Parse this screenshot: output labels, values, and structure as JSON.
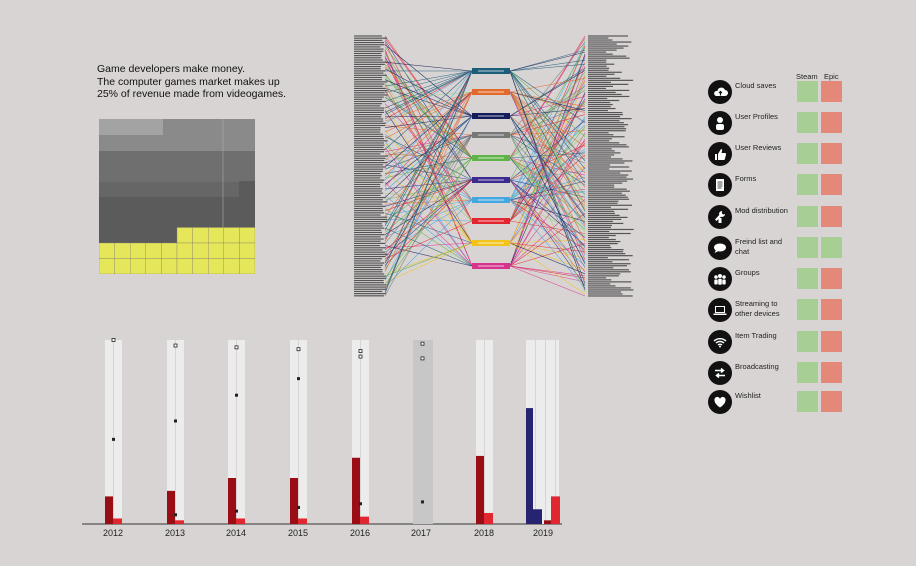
{
  "intro": {
    "line1": "Game developers make money.",
    "line2": "The computer games market makes up",
    "line3": "25% of revenue made from videogames."
  },
  "colors": {
    "background": "#d9d4d4",
    "steam_green": "#a7cf93",
    "epic_red": "#e4897a",
    "bar_dark_red": "#9b0d15",
    "bar_red": "#e0262e",
    "bar_navy": "#262471",
    "bar_track": "#ececec",
    "yellow": "#e6e65a"
  },
  "features": {
    "steam_label": "Steam",
    "epic_label": "Epic",
    "rows": [
      {
        "label": "Cloud saves",
        "icon": "cloud-upload-icon",
        "steam": "green",
        "epic": "red"
      },
      {
        "label": "User Profiles",
        "icon": "user-icon",
        "steam": "green",
        "epic": "red"
      },
      {
        "label": "User Reviews",
        "icon": "thumbs-up-icon",
        "steam": "green",
        "epic": "red"
      },
      {
        "label": "Forms",
        "icon": "document-icon",
        "steam": "green",
        "epic": "red"
      },
      {
        "label": "Mod distribution",
        "icon": "wrench-icon",
        "steam": "green",
        "epic": "red"
      },
      {
        "label": "Freind list and chat",
        "icon": "chat-bubble-icon",
        "steam": "green",
        "epic": "green"
      },
      {
        "label": "Groups",
        "icon": "group-icon",
        "steam": "green",
        "epic": "red"
      },
      {
        "label": "Streaming to other devices",
        "icon": "laptop-icon",
        "steam": "green",
        "epic": "red"
      },
      {
        "label": "Item Trading",
        "icon": "wifi-icon",
        "steam": "green",
        "epic": "red"
      },
      {
        "label": "Broadcasting",
        "icon": "swap-arrows-icon",
        "steam": "green",
        "epic": "red"
      },
      {
        "label": "Wishlist",
        "icon": "heart-icon",
        "steam": "green",
        "epic": "red"
      }
    ]
  },
  "chart_data": [
    {
      "type": "treemap",
      "title": "",
      "yellow_share": 0.25,
      "grid": "10x10"
    },
    {
      "type": "bar",
      "title": "",
      "categories": [
        "2012",
        "2013",
        "2014",
        "2015",
        "2016",
        "2017",
        "2018",
        "2019"
      ],
      "series": [
        {
          "values": [
            15,
            18,
            25,
            25,
            36,
            0,
            37,
            63
          ]
        },
        {
          "values": [
            3,
            2,
            3,
            3,
            4,
            0,
            6,
            8
          ]
        },
        {
          "values": [
            0,
            0,
            0,
            0,
            0,
            0,
            0,
            2
          ]
        },
        {
          "values": [
            0,
            0,
            0,
            0,
            0,
            0,
            0,
            15
          ]
        }
      ],
      "markers_hollow": [
        100,
        97,
        96,
        95,
        94,
        98,
        0,
        0
      ],
      "markers_hollow_2": [
        0,
        0,
        0,
        0,
        91,
        90,
        0,
        0
      ],
      "markers_filled": [
        46,
        5,
        7,
        9,
        11,
        12,
        0,
        0
      ],
      "markers_filled_2": [
        0,
        56,
        70,
        79,
        0,
        0,
        0,
        0
      ],
      "ylim": [
        0,
        100
      ]
    }
  ]
}
